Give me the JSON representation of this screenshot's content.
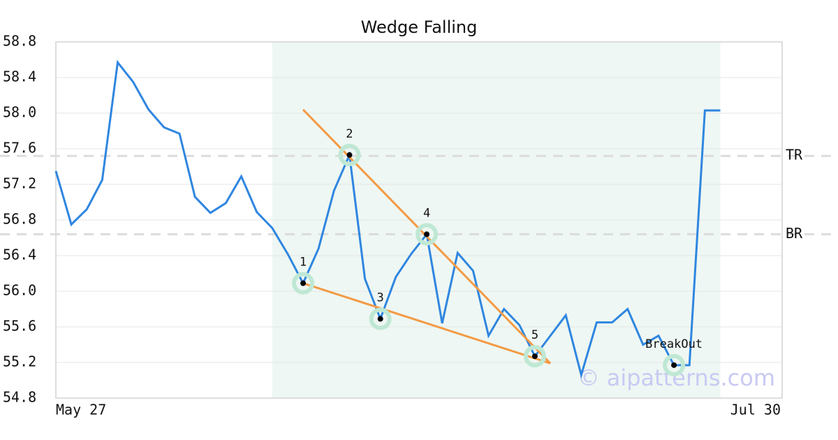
{
  "chart_data": {
    "type": "line",
    "title": "Wedge Falling",
    "categories": [
      "May 27",
      null,
      null,
      null,
      null,
      null,
      null,
      null,
      null,
      null,
      null,
      null,
      null,
      null,
      null,
      null,
      null,
      null,
      null,
      null,
      null,
      null,
      null,
      null,
      null,
      null,
      null,
      null,
      null,
      null,
      null,
      null,
      null,
      null,
      null,
      null,
      null,
      null,
      null,
      null,
      null,
      null,
      null,
      "Jul 30"
    ],
    "series": [
      {
        "color": "#2f86e0",
        "values": [
          57.35,
          56.75,
          56.92,
          57.25,
          58.57,
          58.35,
          58.04,
          57.84,
          57.77,
          57.06,
          56.88,
          56.99,
          57.29,
          56.89,
          56.71,
          56.42,
          56.09,
          56.48,
          57.13,
          57.53,
          56.14,
          55.69,
          56.16,
          56.42,
          56.64,
          55.64,
          56.43,
          56.23,
          55.5,
          55.8,
          55.62,
          55.27,
          55.5,
          55.73,
          55.06,
          55.65,
          55.65,
          55.8,
          55.4,
          55.5,
          55.17,
          55.17,
          58.03,
          58.03
        ]
      }
    ],
    "xlim": [
      0,
      47
    ],
    "ylim": [
      54.8,
      58.8
    ],
    "yticks": [
      {
        "value": 54.8,
        "label": "54.8"
      },
      {
        "value": 55.2,
        "label": "55.2"
      },
      {
        "value": 55.6,
        "label": "55.6"
      },
      {
        "value": 56.0,
        "label": "56.0"
      },
      {
        "value": 56.4,
        "label": "56.4"
      },
      {
        "value": 56.8,
        "label": "56.8"
      },
      {
        "value": 57.2,
        "label": "57.2"
      },
      {
        "value": 57.6,
        "label": "57.6"
      },
      {
        "value": 58.0,
        "label": "58.0"
      },
      {
        "value": 58.4,
        "label": "58.4"
      },
      {
        "value": 58.8,
        "label": "58.8"
      }
    ],
    "grid": true,
    "highlight": [
      14,
      43
    ],
    "highlight_color": "#eef7f3",
    "levels": [
      {
        "label": "TR",
        "value": 57.52
      },
      {
        "label": "BR",
        "value": 56.64
      }
    ],
    "trendlines": {
      "color": "#f39a45",
      "lines": [
        {
          "x": [
            16,
            32
          ],
          "y": [
            58.04,
            55.19
          ]
        },
        {
          "x": [
            16,
            32
          ],
          "y": [
            56.09,
            55.19
          ]
        }
      ]
    },
    "points": [
      {
        "at": 16,
        "label": "1"
      },
      {
        "at": 19,
        "label": "2"
      },
      {
        "at": 21,
        "label": "3"
      },
      {
        "at": 24,
        "label": "4"
      },
      {
        "at": 31,
        "label": "5"
      },
      {
        "at": 40,
        "label": "BreakOut"
      }
    ],
    "watermark": "© aipatterns.com"
  }
}
